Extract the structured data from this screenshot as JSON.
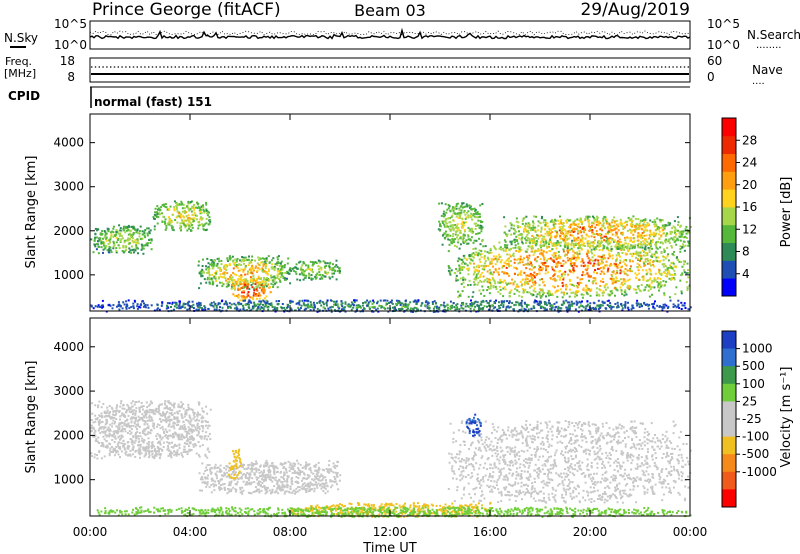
{
  "header": {
    "station": "Prince George (fitACF)",
    "beam": "Beam 03",
    "date": "29/Aug/2019"
  },
  "strips": {
    "nsky_label": "N.Sky",
    "nsearch_label": "N.Search",
    "nsearch_marker": "........",
    "nsky_ticks": [
      "10^5",
      "10^0"
    ],
    "freq_label_1": "Freq.",
    "freq_label_2": "[MHz]",
    "freq_ticks": [
      "18",
      "8"
    ],
    "nave_label": "Nave",
    "nave_marker": "....",
    "nave_ticks": [
      "60",
      "0"
    ],
    "cpid_label": "CPID",
    "cpid_text": "normal (fast) 151"
  },
  "colors": {
    "power_scale": [
      "#0000ff",
      "#1f4fb4",
      "#2e8b57",
      "#55b83a",
      "#a6d64a",
      "#ffd21e",
      "#ff9f10",
      "#ff6a00",
      "#ee2a00",
      "#ff0000"
    ],
    "velocity_scale": [
      "#1c3fc4",
      "#2f6fd0",
      "#3d9a4a",
      "#6fce3a",
      "#c8c8c8",
      "#c8c8c8",
      "#f0c020",
      "#f58a1a",
      "#f05a1a",
      "#ff0000"
    ],
    "velocity_cloud": "#c7c7c7"
  },
  "chart_data": [
    {
      "type": "heatmap",
      "panel": "power",
      "ylabel": "Slant Range [km]",
      "ylim": [
        180,
        4650
      ],
      "yticks": [
        1000,
        2000,
        3000,
        4000
      ],
      "xlim_hours": [
        0,
        24
      ],
      "colorbar": {
        "label": "Power [dB]",
        "range": [
          0,
          32
        ],
        "ticks": [
          "4",
          "8",
          "12",
          "16",
          "20",
          "24",
          "28"
        ],
        "tick_values": [
          4,
          8,
          12,
          16,
          20,
          24,
          28
        ]
      },
      "echo_regions": [
        {
          "t": [
            0.0,
            2.5
          ],
          "range_km": [
            1500,
            2150
          ],
          "power_db": [
            6,
            18
          ]
        },
        {
          "t": [
            2.5,
            4.8
          ],
          "range_km": [
            2000,
            2700
          ],
          "power_db": [
            8,
            20
          ]
        },
        {
          "t": [
            4.3,
            8.0
          ],
          "range_km": [
            700,
            1450
          ],
          "power_db": [
            6,
            24
          ]
        },
        {
          "t": [
            5.6,
            7.2
          ],
          "range_km": [
            420,
            950
          ],
          "power_db": [
            14,
            30
          ]
        },
        {
          "t": [
            8.0,
            10.0
          ],
          "range_km": [
            900,
            1350
          ],
          "power_db": [
            6,
            18
          ]
        },
        {
          "t": [
            13.9,
            15.7
          ],
          "range_km": [
            1700,
            2650
          ],
          "power_db": [
            8,
            18
          ]
        },
        {
          "t": [
            14.3,
            24.0
          ],
          "range_km": [
            500,
            1800
          ],
          "power_db": [
            8,
            28
          ]
        },
        {
          "t": [
            16.5,
            24.0
          ],
          "range_km": [
            1600,
            2350
          ],
          "power_db": [
            8,
            26
          ]
        },
        {
          "t": [
            0.0,
            24.0
          ],
          "range_km": [
            180,
            450
          ],
          "power_db": [
            2,
            12
          ]
        }
      ]
    },
    {
      "type": "heatmap",
      "panel": "velocity",
      "ylabel": "Slant Range [km]",
      "ylim": [
        180,
        4650
      ],
      "yticks": [
        1000,
        2000,
        3000,
        4000
      ],
      "xlabel": "Time UT",
      "xlim_hours": [
        0,
        24
      ],
      "xtick_hours": [
        0,
        4,
        8,
        12,
        16,
        20,
        24
      ],
      "xticks": [
        "00:00",
        "04:00",
        "08:00",
        "12:00",
        "16:00",
        "20:00",
        "00:00"
      ],
      "colorbar": {
        "label": "Velocity [m s⁻¹]",
        "ticks": [
          "1000",
          "500",
          "100",
          "25",
          "-25",
          "-100",
          "-500",
          "-1000"
        ]
      },
      "echo_regions": [
        {
          "t": [
            0.0,
            4.8
          ],
          "range_km": [
            1500,
            2800
          ],
          "velocity_ms": [
            -25,
            25
          ]
        },
        {
          "t": [
            4.3,
            10.0
          ],
          "range_km": [
            700,
            1450
          ],
          "velocity_ms": [
            -25,
            25
          ]
        },
        {
          "t": [
            5.5,
            6.0
          ],
          "range_km": [
            1000,
            1700
          ],
          "velocity_ms": [
            -100,
            -25
          ]
        },
        {
          "t": [
            14.3,
            24.0
          ],
          "range_km": [
            500,
            2350
          ],
          "velocity_ms": [
            -25,
            25
          ]
        },
        {
          "t": [
            15.0,
            15.6
          ],
          "range_km": [
            2000,
            2500
          ],
          "velocity_ms": [
            100,
            1000
          ]
        },
        {
          "t": [
            8.0,
            16.0
          ],
          "range_km": [
            180,
            500
          ],
          "velocity_ms": [
            -100,
            -25
          ]
        },
        {
          "t": [
            0.0,
            24.0
          ],
          "range_km": [
            180,
            400
          ],
          "velocity_ms": [
            25,
            100
          ]
        }
      ]
    }
  ]
}
